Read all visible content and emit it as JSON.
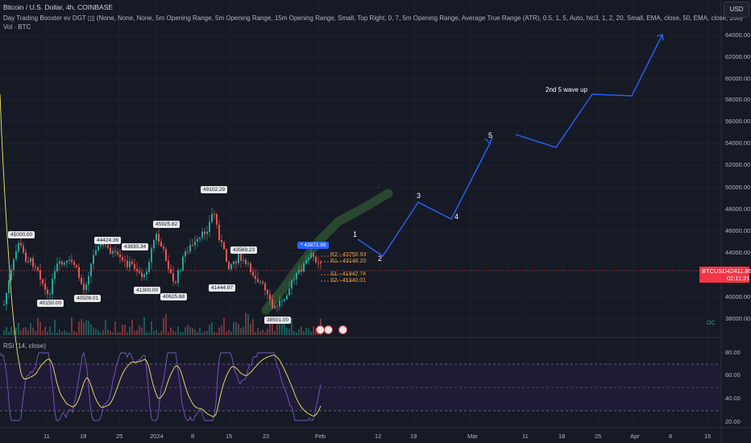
{
  "header": {
    "title": "Bitcoin / U.S. Dollar, 4h, COINBASE",
    "indicator": "Day Trading Booster ev DGT ▯▯ (None, None, None, 5m Opening Range, 5m Opening Range, 15m Opening Range, Small, Top Right, 0, 7, 5m Opening Range, Average True Range (ATR), 0.5, 1, 5, Auto, hlc3, 1, 2, 20, Small, EMA, close, 50, EMA, close, 200)",
    "volume": "Vol · BTC",
    "rsi": "RSI (14, close)"
  },
  "currency": "USD",
  "symbol": "BTCUSD",
  "current_price": "42411.86",
  "countdown": "02:11:21",
  "price_axis": [
    "64000.00",
    "62000.00",
    "60000.00",
    "58000.00",
    "56000.00",
    "54000.00",
    "52000.00",
    "50000.00",
    "48000.00",
    "46000.00",
    "44000.00",
    "40000.00",
    "38000.00"
  ],
  "rsi_axis": [
    "80.00",
    "60.00",
    "40.00",
    "20.00"
  ],
  "time_axis": [
    "11",
    "18",
    "25",
    "2024",
    "8",
    "15",
    "22",
    "Feb",
    "12",
    "19",
    "Mar",
    "11",
    "18",
    "25",
    "Apr",
    "8",
    "15"
  ],
  "price_bubbles": [
    "45000.00",
    "40150.00",
    "40508.01",
    "44424.36",
    "43830.34",
    "41300.00",
    "45925.82",
    "40625.68",
    "49102.29",
    "41444.97",
    "43569.23",
    "38501.00"
  ],
  "current_marker": "* 43872.99",
  "pivots": [
    "R2 - 43750.93",
    "R1 - 43148.20",
    "S1 - 41942.74",
    "S2 - 41340.01"
  ],
  "wave_labels": [
    "1",
    "2",
    "3",
    "4",
    "5"
  ],
  "annotation": "2nd 5 wave up",
  "ok_label": "OC",
  "colors": {
    "background": "#161a25",
    "up": "#26a69a",
    "down": "#ef5350",
    "projection": "#2962ff",
    "rsi": "#7e57c2",
    "rsi_ma": "#f5e663",
    "pivot": "#f0a13c",
    "price_tag": "#f23645"
  }
}
